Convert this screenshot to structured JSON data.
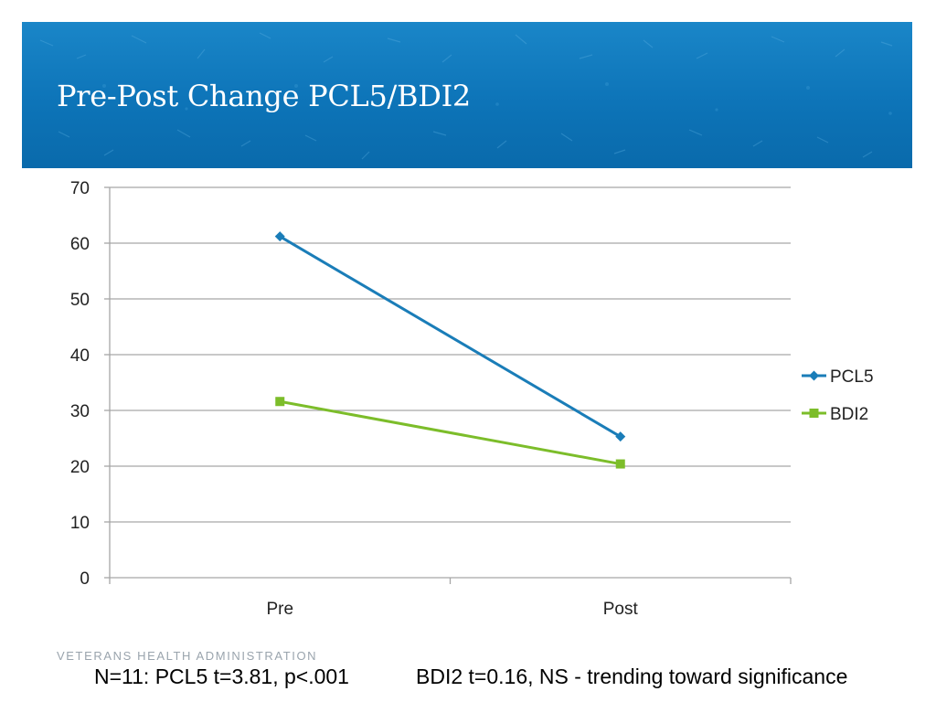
{
  "slide": {
    "title": "Pre-Post Change PCL5/BDI2",
    "footer_org": "VETERANS HEALTH ADMINISTRATION",
    "footnote_left": "N=11: PCL5  t=3.81, p<.001",
    "footnote_right": "BDI2 t=0.16, NS  - trending toward significance"
  },
  "colors": {
    "banner": "#0d74b8",
    "pcl5": "#1a7db8",
    "bdi2": "#7cbd2a",
    "grid": "#a6a6a6"
  },
  "chart_data": {
    "type": "line",
    "categories": [
      "Pre",
      "Post"
    ],
    "ylim": [
      0,
      70
    ],
    "yticks": [
      0,
      10,
      20,
      30,
      40,
      50,
      60,
      70
    ],
    "grid": true,
    "legend": "right",
    "series": [
      {
        "name": "PCL5",
        "values": [
          61.2,
          25.3
        ],
        "color": "#1a7db8",
        "marker": "diamond"
      },
      {
        "name": "BDI2",
        "values": [
          31.6,
          20.4
        ],
        "color": "#7cbd2a",
        "marker": "square"
      }
    ]
  }
}
